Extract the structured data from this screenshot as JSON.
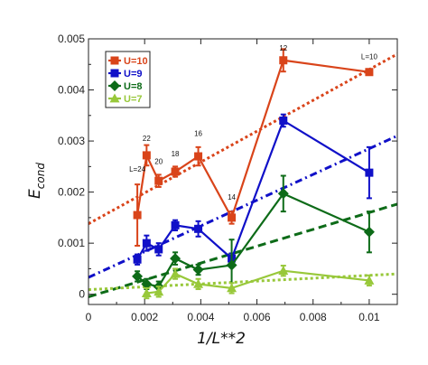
{
  "chart_data": {
    "type": "line",
    "xlabel": "1/L**2",
    "ylabel_main": "E",
    "ylabel_sub": "cond",
    "xlim": [
      0,
      0.011
    ],
    "ylim": [
      -0.0002,
      0.005
    ],
    "xticks": [
      0,
      0.002,
      0.004,
      0.006,
      0.008,
      0.01
    ],
    "xtick_labels": [
      "0",
      "0.002",
      "0.004",
      "0.006",
      "0.008",
      "0.01"
    ],
    "yticks": [
      0,
      0.001,
      0.002,
      0.003,
      0.004,
      0.005
    ],
    "ytick_labels": [
      "0",
      "0.001",
      "0.002",
      "0.003",
      "0.004",
      "0.005"
    ],
    "grid": false,
    "legend_position": "top-left",
    "series": [
      {
        "name": "U=10",
        "color": "#d9441a",
        "marker": "square",
        "points": [
          {
            "x": 0.00174,
            "y": 0.00155,
            "err": 0.0006
          },
          {
            "x": 0.00207,
            "y": 0.00272,
            "err": 0.0002
          },
          {
            "x": 0.0025,
            "y": 0.00222,
            "err": 0.00012
          },
          {
            "x": 0.00309,
            "y": 0.0024,
            "err": 0.0001
          },
          {
            "x": 0.00391,
            "y": 0.0027,
            "err": 0.00018
          },
          {
            "x": 0.0051,
            "y": 0.0015,
            "err": 0.00012
          },
          {
            "x": 0.00694,
            "y": 0.00458,
            "err": 0.00022
          },
          {
            "x": 0.01,
            "y": 0.00435,
            "err": 5e-05
          }
        ],
        "fit": {
          "intercept": 0.00138,
          "slope": 0.302,
          "style": "dotted"
        }
      },
      {
        "name": "U=9",
        "color": "#1010c8",
        "marker": "square",
        "points": [
          {
            "x": 0.00174,
            "y": 0.00068,
            "err": 0.0001
          },
          {
            "x": 0.00207,
            "y": 0.001,
            "err": 0.00015
          },
          {
            "x": 0.0025,
            "y": 0.00088,
            "err": 0.00012
          },
          {
            "x": 0.00309,
            "y": 0.00135,
            "err": 0.0001
          },
          {
            "x": 0.00391,
            "y": 0.00128,
            "err": 0.00015
          },
          {
            "x": 0.0051,
            "y": 0.0007,
            "err": 0.0001
          },
          {
            "x": 0.00694,
            "y": 0.0034,
            "err": 0.00012
          },
          {
            "x": 0.01,
            "y": 0.00238,
            "err": 0.0005
          }
        ],
        "fit": {
          "intercept": 0.00033,
          "slope": 0.252,
          "style": "dash-dot"
        }
      },
      {
        "name": "U=8",
        "color": "#0d6b18",
        "marker": "diamond",
        "points": [
          {
            "x": 0.00174,
            "y": 0.00035,
            "err": 0.0001
          },
          {
            "x": 0.00207,
            "y": 0.0002,
            "err": 0.0001
          },
          {
            "x": 0.0025,
            "y": 0.00015,
            "err": 0.0001
          },
          {
            "x": 0.00309,
            "y": 0.0007,
            "err": 0.00012
          },
          {
            "x": 0.00391,
            "y": 0.00048,
            "err": 0.0001
          },
          {
            "x": 0.0051,
            "y": 0.00057,
            "err": 0.0005
          },
          {
            "x": 0.00694,
            "y": 0.00197,
            "err": 0.00035
          },
          {
            "x": 0.01,
            "y": 0.00122,
            "err": 0.0004
          }
        ],
        "fit": {
          "intercept": -5e-05,
          "slope": 0.165,
          "style": "dashed"
        }
      },
      {
        "name": "U=7",
        "color": "#98c83a",
        "marker": "triangle",
        "points": [
          {
            "x": 0.00207,
            "y": 2e-05,
            "err": 0.0001
          },
          {
            "x": 0.0025,
            "y": 5e-05,
            "err": 0.0001
          },
          {
            "x": 0.00309,
            "y": 0.0004,
            "err": 0.0001
          },
          {
            "x": 0.00391,
            "y": 0.0002,
            "err": 0.0001
          },
          {
            "x": 0.0051,
            "y": 0.00012,
            "err": 0.0001
          },
          {
            "x": 0.00694,
            "y": 0.00046,
            "err": 0.0001
          },
          {
            "x": 0.01,
            "y": 0.00027,
            "err": 0.0001
          }
        ],
        "fit": {
          "intercept": 9e-05,
          "slope": 0.028,
          "style": "dotted"
        }
      }
    ],
    "annotations": [
      {
        "text": "L=24",
        "x": 0.00174,
        "y": 0.0024
      },
      {
        "text": "22",
        "x": 0.00207,
        "y": 0.003
      },
      {
        "text": "20",
        "x": 0.0025,
        "y": 0.00255
      },
      {
        "text": "18",
        "x": 0.00309,
        "y": 0.0027
      },
      {
        "text": "16",
        "x": 0.00391,
        "y": 0.0031
      },
      {
        "text": "14",
        "x": 0.0051,
        "y": 0.00185
      },
      {
        "text": "12",
        "x": 0.00694,
        "y": 0.00477
      },
      {
        "text": "L=10",
        "x": 0.01,
        "y": 0.0046
      }
    ]
  }
}
